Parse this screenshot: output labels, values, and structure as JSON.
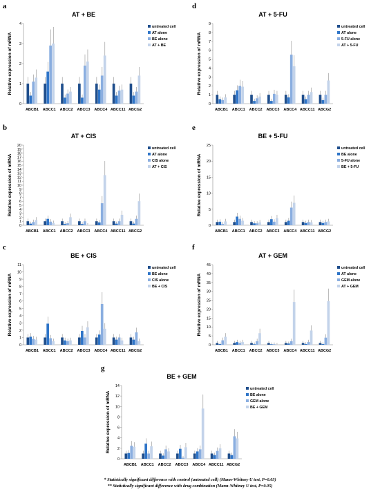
{
  "colors": {
    "untreated": "#1f4e8c",
    "second": "#2f75c8",
    "third": "#8aaee0",
    "combo": "#c3d3ea"
  },
  "genes": [
    "ABCB1",
    "ABCC1",
    "ABCC2",
    "ABCC3",
    "ABCC4",
    "ABCC11",
    "ABCG2"
  ],
  "footnotes": [
    "* Statistically significant difference with control (untreated cell) (Mann-Whitney U test, P=0.03)",
    "** Statistically significant difference with drug combination (Mann-Whitney U test, P=0.05)"
  ],
  "chart_data": [
    {
      "id": "a",
      "type": "bar",
      "title": "AT + BE",
      "ylabel": "Relative expression of mRNA",
      "ylim": [
        0,
        4
      ],
      "yticks": [
        0,
        1,
        2,
        3,
        4
      ],
      "categories": [
        "ABCB1",
        "ABCC1",
        "ABCC2",
        "ABCC3",
        "ABCC4",
        "ABCC11",
        "ABCG2"
      ],
      "series": [
        {
          "name": "untreated cell",
          "values": [
            1,
            1,
            1,
            1,
            1,
            1,
            1
          ]
        },
        {
          "name": "AT alone",
          "values": [
            0.4,
            1.6,
            0.3,
            0.3,
            0.7,
            0.4,
            0.4
          ]
        },
        {
          "name": "BE alone",
          "values": [
            1.1,
            2.9,
            0.5,
            1.9,
            1.4,
            0.65,
            0.6
          ]
        },
        {
          "name": "AT + BE",
          "values": [
            1.3,
            3.0,
            0.6,
            2.1,
            2.4,
            0.7,
            1.4
          ]
        }
      ],
      "legend": "right"
    },
    {
      "id": "d",
      "type": "bar",
      "title": "AT + 5-FU",
      "ylabel": "Relative expression of mRNA",
      "ylim": [
        0,
        9
      ],
      "yticks": [
        0,
        1,
        2,
        3,
        4,
        5,
        6,
        7,
        8,
        9
      ],
      "categories": [
        "ABCB1",
        "ABCC1",
        "ABCC2",
        "ABCC3",
        "ABCC4",
        "ABCC11",
        "ABCG2"
      ],
      "series": [
        {
          "name": "untreated cell",
          "values": [
            1,
            1,
            1,
            1,
            1,
            1,
            1
          ]
        },
        {
          "name": "AT alone",
          "values": [
            0.5,
            1.5,
            0.3,
            0.3,
            0.7,
            0.5,
            0.4
          ]
        },
        {
          "name": "5-FU alone",
          "values": [
            0.4,
            2.0,
            0.6,
            1.1,
            5.5,
            1.0,
            1.0
          ]
        },
        {
          "name": "AT + 5-FU",
          "values": [
            0.7,
            1.9,
            0.8,
            1.0,
            4.2,
            1.3,
            2.6
          ]
        }
      ],
      "legend": "right"
    },
    {
      "id": "b",
      "type": "bar",
      "title": "AT + CIS",
      "ylabel": "Relative expression of mRNA",
      "ylim": [
        0,
        20
      ],
      "yticks": [
        0,
        1,
        2,
        3,
        4,
        5,
        6,
        7,
        8,
        9,
        10,
        11,
        12,
        13,
        14,
        15,
        16,
        17,
        18,
        19,
        20
      ],
      "categories": [
        "ABCB1",
        "ABCC1",
        "ABCC2",
        "ABCC3",
        "ABCC4",
        "ABCC11",
        "ABCG2"
      ],
      "series": [
        {
          "name": "untreated cell",
          "values": [
            1,
            1,
            1,
            1,
            1,
            1,
            1
          ]
        },
        {
          "name": "AT alone",
          "values": [
            0.4,
            1.6,
            0.3,
            0.3,
            0.7,
            0.4,
            0.4
          ]
        },
        {
          "name": "CIS alone",
          "values": [
            0.8,
            0.9,
            0.5,
            1.0,
            5.5,
            1.0,
            1.6
          ]
        },
        {
          "name": "AT + CIS",
          "values": [
            1.3,
            0.6,
            2.0,
            0.1,
            12.5,
            2.6,
            6.0
          ]
        }
      ],
      "legend": "right"
    },
    {
      "id": "e",
      "type": "bar",
      "title": "BE + 5-FU",
      "ylabel": "Relative expression of mRNA",
      "ylim": [
        0,
        25
      ],
      "yticks": [
        0,
        5,
        10,
        15,
        20,
        25
      ],
      "categories": [
        "ABCB1",
        "ABCC1",
        "ABCC2",
        "ABCC3",
        "ABCC4",
        "ABCC11",
        "ABCG2"
      ],
      "series": [
        {
          "name": "untreated cell",
          "values": [
            1,
            1,
            1,
            1,
            1,
            1,
            1
          ]
        },
        {
          "name": "BE alone",
          "values": [
            1.1,
            2.7,
            0.6,
            1.9,
            1.4,
            0.7,
            0.7
          ]
        },
        {
          "name": "5-FU alone",
          "values": [
            0.4,
            2.0,
            0.6,
            1.1,
            5.5,
            1.0,
            1.0
          ]
        },
        {
          "name": "BE + 5-FU",
          "values": [
            1.2,
            1.4,
            0.9,
            2.2,
            7.0,
            0.9,
            1.2
          ]
        }
      ],
      "legend": "right"
    },
    {
      "id": "c",
      "type": "bar",
      "title": "BE + CIS",
      "ylabel": "Relative expression of mRNA",
      "ylim": [
        0,
        11
      ],
      "yticks": [
        0,
        1,
        2,
        3,
        4,
        5,
        6,
        7,
        8,
        9,
        10,
        11
      ],
      "categories": [
        "ABCB1",
        "ABCC1",
        "ABCC2",
        "ABCC3",
        "ABCC4",
        "ABCC11",
        "ABCG2"
      ],
      "series": [
        {
          "name": "untreated cell",
          "values": [
            1,
            1,
            1,
            1,
            1,
            1,
            1
          ]
        },
        {
          "name": "BE alone",
          "values": [
            1.1,
            2.9,
            0.6,
            1.9,
            1.4,
            0.7,
            0.7
          ]
        },
        {
          "name": "CIS alone",
          "values": [
            0.8,
            0.9,
            0.5,
            1.0,
            5.6,
            1.0,
            1.7
          ]
        },
        {
          "name": "BE + CIS",
          "values": [
            0.7,
            0.5,
            0.6,
            2.4,
            2.2,
            0.6,
            0.5
          ]
        }
      ],
      "legend": "right"
    },
    {
      "id": "f",
      "type": "bar",
      "title": "AT + GEM",
      "ylabel": "Relative expression of mRNA",
      "ylim": [
        0,
        45
      ],
      "yticks": [
        0,
        5,
        10,
        15,
        20,
        25,
        30,
        35,
        40,
        45
      ],
      "categories": [
        "ABCB1",
        "ABCC1",
        "ABCC2",
        "ABCC3",
        "ABCC4",
        "ABCC11",
        "ABCG2"
      ],
      "series": [
        {
          "name": "untreated cell",
          "values": [
            1,
            1,
            1,
            1,
            1,
            1,
            1
          ]
        },
        {
          "name": "AT alone",
          "values": [
            0.4,
            1.5,
            0.3,
            0.3,
            0.7,
            0.4,
            0.4
          ]
        },
        {
          "name": "GEM alone",
          "values": [
            2.5,
            1.0,
            2.0,
            0.3,
            2.0,
            1.5,
            4.0
          ]
        },
        {
          "name": "AT + GEM",
          "values": [
            4.5,
            1.5,
            6.5,
            0.1,
            24.0,
            8.0,
            24.5
          ]
        }
      ],
      "legend": "right"
    },
    {
      "id": "g",
      "type": "bar",
      "title": "BE + GEM",
      "ylabel": "Relative expression of mRNA",
      "ylim": [
        0,
        14
      ],
      "yticks": [
        0,
        2,
        4,
        6,
        8,
        10,
        12,
        14
      ],
      "categories": [
        "ABCB1",
        "ABCC1",
        "ABCC2",
        "ABCC3",
        "ABCC4",
        "ABCC11",
        "ABCG2"
      ],
      "series": [
        {
          "name": "untreated cell",
          "values": [
            1,
            1,
            1,
            1,
            1,
            1,
            1
          ]
        },
        {
          "name": "BE alone",
          "values": [
            1.1,
            2.9,
            0.6,
            1.9,
            1.4,
            0.7,
            0.7
          ]
        },
        {
          "name": "GEM alone",
          "values": [
            2.5,
            1.0,
            1.8,
            0.2,
            1.8,
            1.5,
            4.3
          ]
        },
        {
          "name": "BE + GEM",
          "values": [
            2.3,
            2.4,
            1.4,
            2.2,
            9.6,
            2.0,
            3.9
          ]
        }
      ],
      "legend": "right"
    }
  ]
}
